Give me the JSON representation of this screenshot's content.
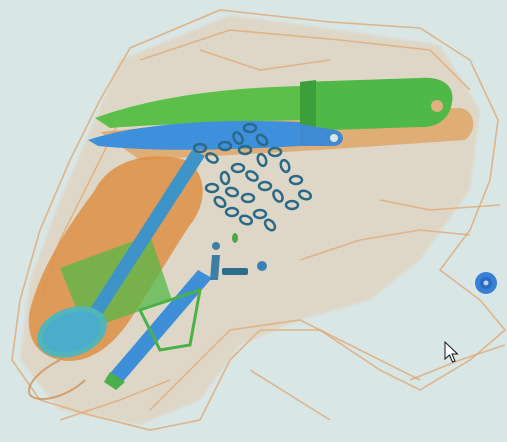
{
  "scene": {
    "kind": "x-ray baggage scan",
    "background_color": "#d9e6e6",
    "organic_color": "#e0a064",
    "metal_color": "#3f8fd8",
    "inorganic_color": "#55b848",
    "objects": [
      {
        "name": "knife",
        "icon": "knife-icon"
      },
      {
        "name": "second-knife",
        "icon": "knife-icon"
      },
      {
        "name": "chain",
        "icon": "chain-icon"
      },
      {
        "name": "spoon",
        "icon": "spoon-icon"
      },
      {
        "name": "pen",
        "icon": "pen-icon"
      },
      {
        "name": "bag",
        "icon": "bag-icon"
      },
      {
        "name": "coin",
        "icon": "coin-icon"
      }
    ]
  },
  "cursor": {
    "icon": "mouse-pointer-icon"
  }
}
